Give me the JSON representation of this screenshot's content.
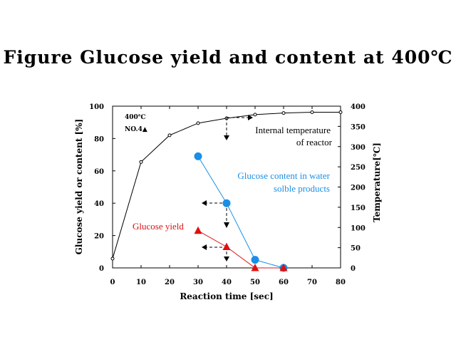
{
  "title": "Figure  Glucose yield and content at 400℃",
  "chart_data": {
    "type": "line",
    "xlabel": "Reaction time  [sec]",
    "ylabel": "Glucose yield or content  [%]",
    "y2label": "Temperature[℃]",
    "xlim": [
      0,
      80
    ],
    "ylim": [
      0,
      100
    ],
    "y2lim": [
      0,
      400
    ],
    "xticks": [
      "0",
      "10",
      "20",
      "30",
      "40",
      "50",
      "60",
      "70",
      "80"
    ],
    "yticks": [
      "0",
      "20",
      "40",
      "60",
      "80",
      "100"
    ],
    "y2ticks": [
      "0",
      "50",
      "100",
      "150",
      "200",
      "250",
      "300",
      "350",
      "400"
    ],
    "conditions": [
      "400℃",
      "NO.4▲"
    ],
    "series": [
      {
        "name": "Internal temperature of reactor",
        "label_lines": [
          "Internal temperature",
          "of reactor"
        ],
        "axis": "right",
        "color": "#000000",
        "marker": "small-circle",
        "x": [
          0,
          10,
          20,
          30,
          40,
          50,
          60,
          70,
          80
        ],
        "y": [
          23,
          262,
          328,
          358,
          370,
          379,
          383,
          385,
          385
        ]
      },
      {
        "name": "Glucose content in water solble products",
        "label_lines": [
          "Glucose content in water",
          "solble products"
        ],
        "axis": "left",
        "color": "#1a8fe6",
        "marker": "circle",
        "x": [
          30,
          40,
          50,
          60
        ],
        "y": [
          69,
          40,
          5,
          0
        ]
      },
      {
        "name": "Glucose yield",
        "label_lines": [
          "Glucose yield"
        ],
        "axis": "left",
        "color": "#e01010",
        "marker": "triangle",
        "x": [
          30,
          40,
          50,
          60
        ],
        "y": [
          23,
          13,
          0,
          0
        ]
      }
    ]
  }
}
